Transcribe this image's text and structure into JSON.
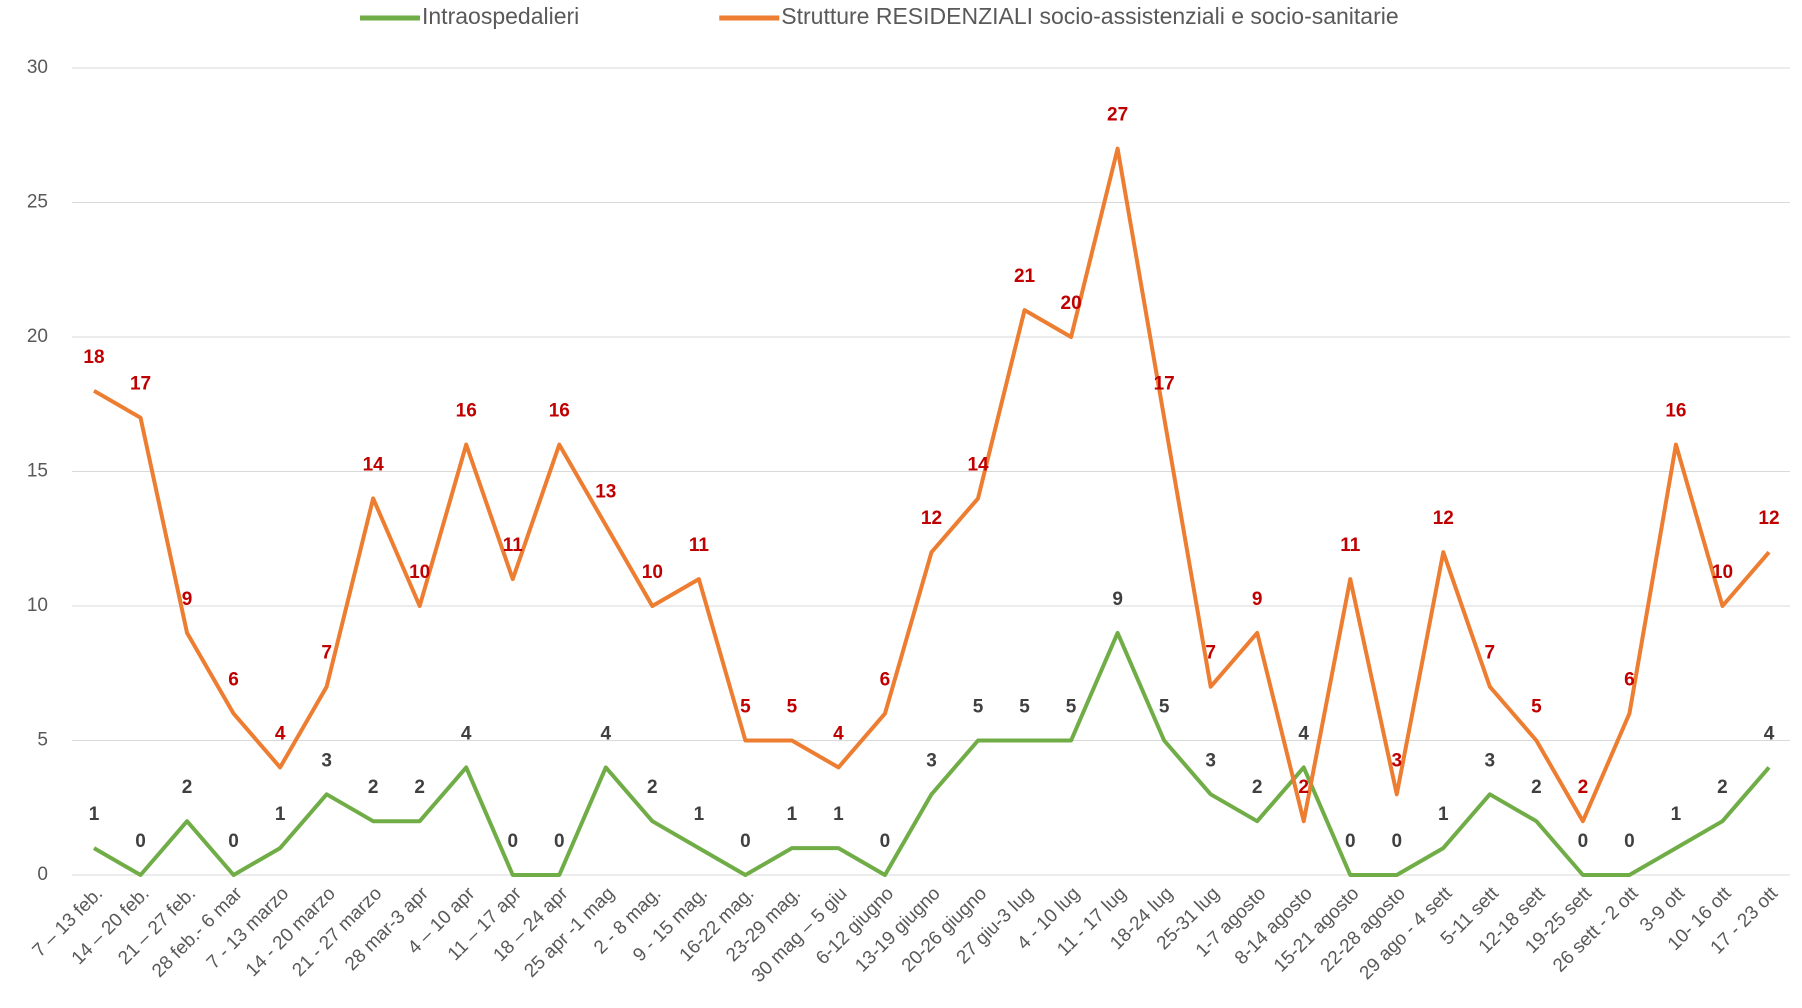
{
  "chart_data": {
    "type": "line",
    "categories": [
      "7 – 13 feb.",
      "14 – 20 feb.",
      "21 – 27 feb.",
      "28 feb.- 6 mar",
      "7 - 13 marzo",
      "14 - 20 marzo",
      "21 - 27 marzo",
      "28 mar-3 apr",
      "4 – 10 apr",
      "11 – 17 apr",
      "18 – 24 apr",
      "25 apr -1 mag",
      "2 - 8 mag.",
      "9 - 15 mag.",
      "16-22 mag.",
      "23-29 mag.",
      "30 mag – 5 giu",
      "6-12 giugno",
      "13-19 giugno",
      "20-26 giugno",
      "27 giu-3 lug",
      "4 - 10 lug",
      "11 - 17 lug",
      "18-24 lug",
      "25-31 lug",
      "1-7 agosto",
      "8-14 agosto",
      "15-21 agosto",
      "22-28 agosto",
      "29 ago - 4 sett",
      "5-11 sett",
      "12-18 sett",
      "19-25 sett",
      "26 sett - 2 ott",
      "3-9 ott",
      "10- 16 ott",
      "17 - 23 ott"
    ],
    "series": [
      {
        "name": "Intraospedalieri",
        "color": "#70ad47",
        "label_color": "#404040",
        "values": [
          1,
          0,
          2,
          0,
          1,
          3,
          2,
          2,
          4,
          0,
          0,
          4,
          2,
          1,
          0,
          1,
          1,
          0,
          3,
          5,
          5,
          5,
          9,
          5,
          3,
          2,
          4,
          0,
          0,
          1,
          3,
          2,
          0,
          0,
          1,
          2,
          4
        ]
      },
      {
        "name": "Strutture RESIDENZIALI socio-assistenziali e socio-sanitarie",
        "color": "#ed7d31",
        "label_color": "#c00000",
        "values": [
          18,
          17,
          9,
          6,
          4,
          7,
          14,
          10,
          16,
          11,
          16,
          13,
          10,
          11,
          5,
          5,
          4,
          6,
          12,
          14,
          21,
          20,
          27,
          17,
          7,
          9,
          2,
          11,
          3,
          12,
          7,
          5,
          2,
          6,
          16,
          10,
          12
        ]
      }
    ],
    "ylim": [
      0,
      30
    ],
    "yticks": [
      0,
      5,
      10,
      15,
      20,
      25,
      30
    ],
    "grid": true,
    "legend": "top"
  }
}
